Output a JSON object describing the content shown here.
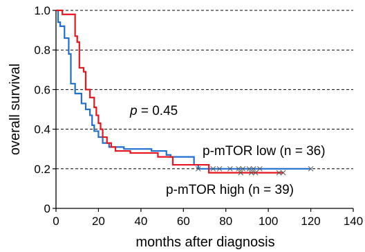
{
  "chart_data": {
    "type": "line",
    "step": true,
    "xlabel": "months after diagnosis",
    "ylabel": "overall survival",
    "xlim": [
      0,
      140
    ],
    "ylim": [
      0,
      1.0
    ],
    "xticks": [
      0,
      20,
      40,
      60,
      80,
      100,
      120,
      140
    ],
    "yticks": [
      0,
      0.2,
      0.4,
      0.6,
      0.8,
      1.0
    ],
    "ytick_labels": [
      "0",
      "0.2",
      "0.4",
      "0.6",
      "0.8",
      "1.0"
    ],
    "grid": "dashed horizontal at y ticks",
    "annotations": {
      "p_symbol": "p",
      "p_rest": " = 0.45"
    },
    "series": [
      {
        "name": "p-mTOR low (n = 36)",
        "color": "#1f6fd1",
        "x": [
          0,
          1,
          2,
          4,
          6,
          7,
          9,
          12,
          14,
          16,
          17,
          18,
          20,
          22,
          25,
          27,
          32,
          45,
          52,
          54,
          65,
          67,
          120
        ],
        "y": [
          1.0,
          0.94,
          0.92,
          0.86,
          0.78,
          0.63,
          0.58,
          0.53,
          0.5,
          0.47,
          0.42,
          0.39,
          0.36,
          0.33,
          0.31,
          0.31,
          0.3,
          0.29,
          0.27,
          0.26,
          0.22,
          0.2,
          0.2
        ],
        "censored_x": [
          67,
          74,
          77,
          82,
          86,
          88,
          91,
          93,
          96,
          120
        ]
      },
      {
        "name": "p-mTOR high (n = 39)",
        "color": "#e8141e",
        "x": [
          0,
          3,
          9,
          10,
          11,
          13,
          14,
          16,
          18,
          19,
          20,
          21,
          22,
          24,
          26,
          28,
          35,
          48,
          55,
          72,
          107
        ],
        "y": [
          1.0,
          0.98,
          0.87,
          0.84,
          0.71,
          0.69,
          0.6,
          0.56,
          0.51,
          0.47,
          0.43,
          0.4,
          0.36,
          0.33,
          0.31,
          0.29,
          0.28,
          0.26,
          0.22,
          0.18,
          0.18
        ],
        "censored_x": [
          87,
          92,
          94,
          105,
          107
        ]
      }
    ]
  }
}
